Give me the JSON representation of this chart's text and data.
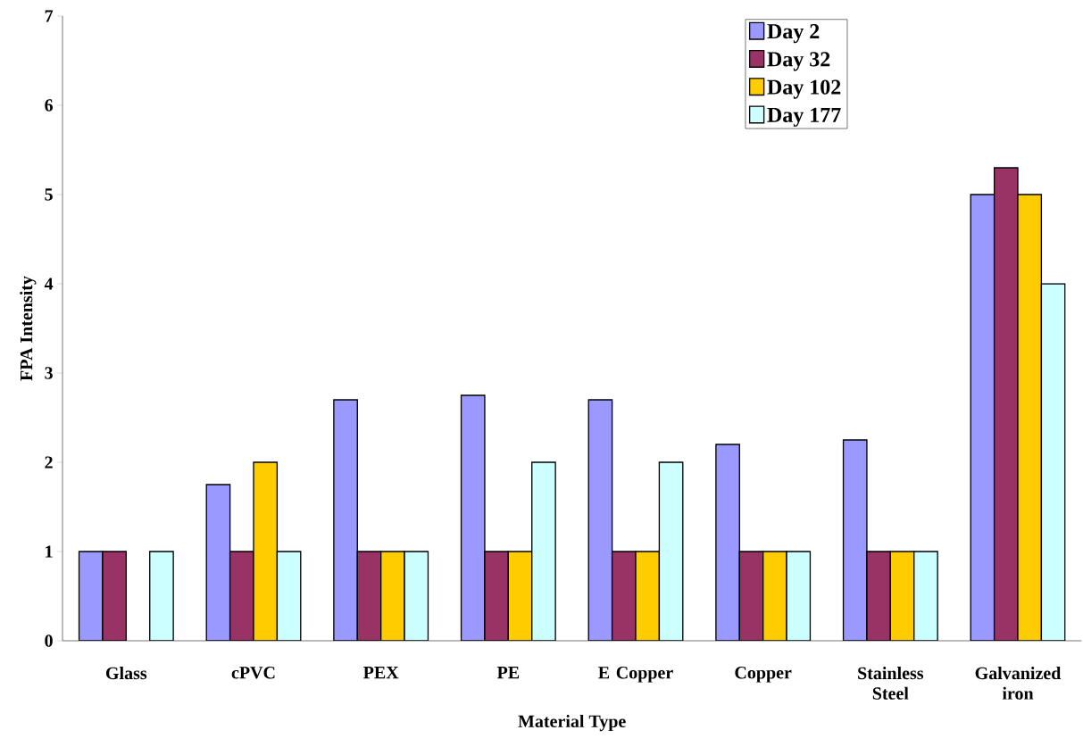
{
  "chart_data": {
    "type": "bar",
    "xlabel": "Material Type",
    "ylabel": "FPA Intensity",
    "categories": [
      "Glass",
      "cPVC",
      "PEX",
      "PE",
      "E Copper",
      "Copper",
      "Stainless Steel",
      "Galvanized iron"
    ],
    "series": [
      {
        "name": "Day 2",
        "color": "#9999ff",
        "values": [
          1,
          1.75,
          2.7,
          2.75,
          2.7,
          2.2,
          2.25,
          5
        ]
      },
      {
        "name": "Day 32",
        "color": "#993366",
        "values": [
          1,
          1,
          1,
          1,
          1,
          1,
          1,
          5.3
        ]
      },
      {
        "name": "Day 102",
        "color": "#ffcc00",
        "values": [
          null,
          2,
          1,
          1,
          1,
          1,
          1,
          5
        ]
      },
      {
        "name": "Day 177",
        "color": "#ccffff",
        "values": [
          1,
          1,
          1,
          2,
          2,
          1,
          1,
          4
        ]
      }
    ],
    "ylim": [
      0,
      7
    ],
    "yticks": [
      0,
      1,
      2,
      3,
      4,
      5,
      6,
      7
    ],
    "grid": false,
    "legend": "top right"
  }
}
